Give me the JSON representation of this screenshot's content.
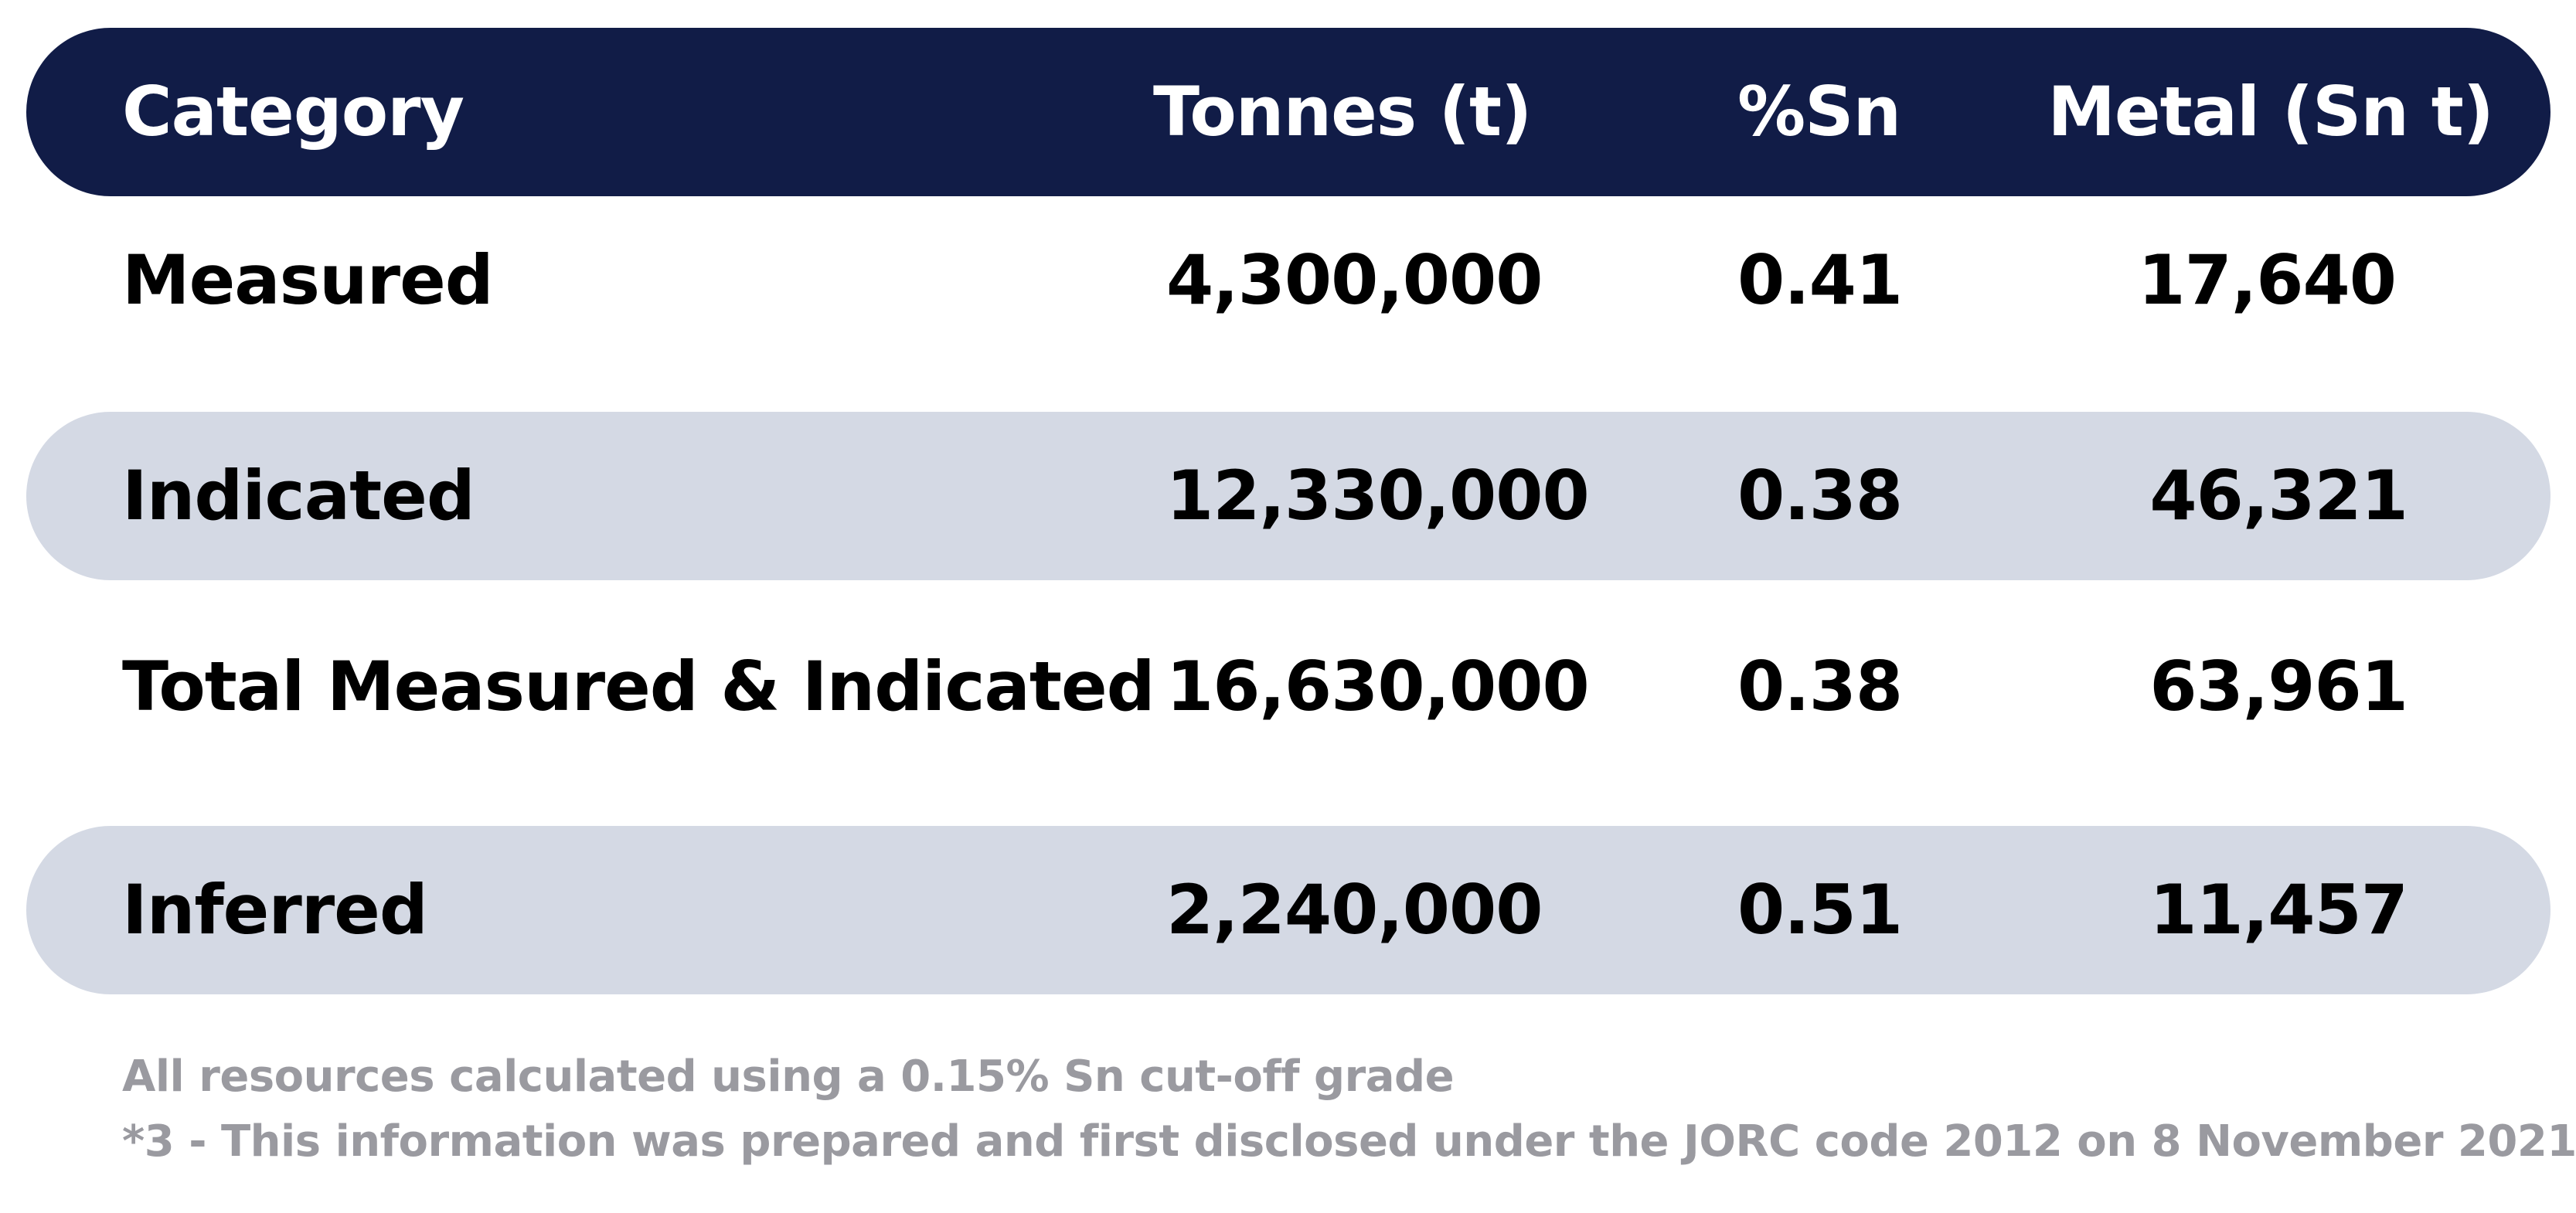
{
  "table": {
    "headers": {
      "category": "Category",
      "tonnes": "Tonnes (t)",
      "grade": "%Sn",
      "metal": "Metal (Sn t)"
    },
    "rows": [
      {
        "category": "Measured",
        "tonnes": "4,300,000",
        "grade": "0.41",
        "metal": "17,640"
      },
      {
        "category": "Indicated",
        "tonnes": "12,330,000",
        "grade": "0.38",
        "metal": "46,321"
      },
      {
        "category": "Total Measured & Indicated",
        "tonnes": "16,630,000",
        "grade": "0.38",
        "metal": "63,961"
      },
      {
        "category": "Inferred",
        "tonnes": "2,240,000",
        "grade": "0.51",
        "metal": "11,457"
      }
    ]
  },
  "notes": [
    "All resources calculated using a 0.15% Sn cut-off grade",
    "*3 - This information was prepared and first disclosed under the JORC code 2012 on 8 November 2021"
  ],
  "colors": {
    "header_bg": "#111c47",
    "header_text": "#ffffff",
    "shaded_row_bg": "#d4d9e4",
    "note_text": "#9a9aa0"
  }
}
